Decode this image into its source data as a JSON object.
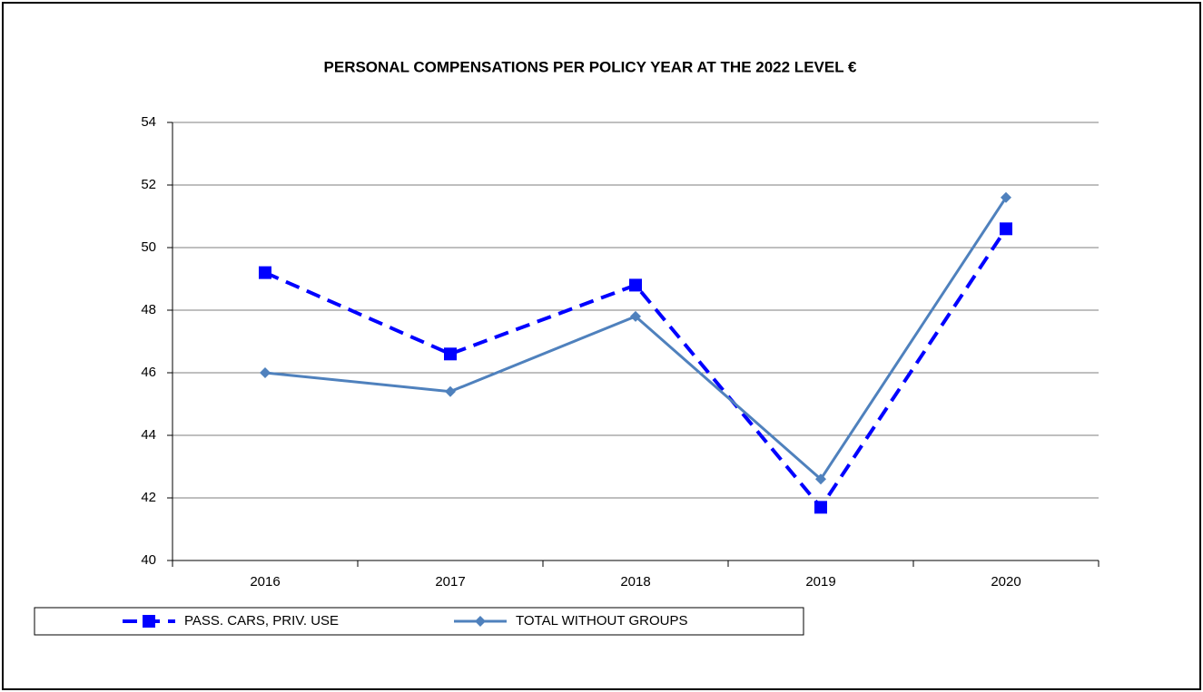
{
  "chart_data": {
    "type": "line",
    "title": "PERSONAL COMPENSATIONS PER POLICY YEAR AT THE 2022 LEVEL €",
    "categories": [
      "2016",
      "2017",
      "2018",
      "2019",
      "2020"
    ],
    "series": [
      {
        "name": "PASS. CARS, PRIV. USE",
        "color": "#0000ff",
        "line_style": "dashed",
        "marker": "square",
        "values": [
          49.2,
          46.6,
          48.8,
          41.7,
          50.6
        ]
      },
      {
        "name": "TOTAL WITHOUT GROUPS",
        "color": "#4f81bd",
        "line_style": "solid",
        "marker": "diamond",
        "values": [
          46.0,
          45.4,
          47.8,
          42.6,
          51.6
        ]
      }
    ],
    "ylim": [
      40,
      54
    ],
    "yticks": [
      40,
      42,
      44,
      46,
      48,
      50,
      52,
      54
    ],
    "grid": true,
    "legend": "bottom"
  }
}
